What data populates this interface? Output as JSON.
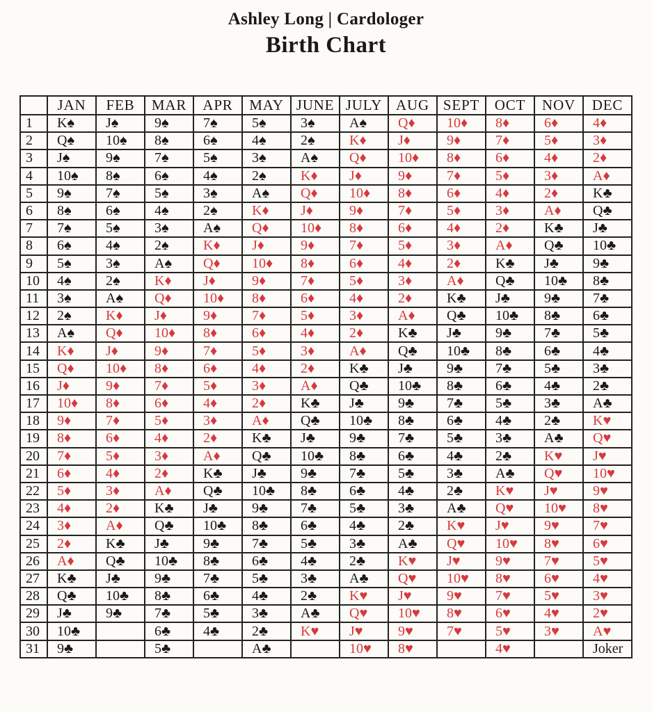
{
  "header": {
    "byline": "Ashley Long | Cardologer",
    "title": "Birth Chart"
  },
  "colors": {
    "paper": "#fcfbf8",
    "ink_black": "#1b1917",
    "grid_line": "#24221f",
    "card_red": "#d63a3e"
  },
  "table": {
    "corner_label": "",
    "months": [
      "JAN",
      "FEB",
      "MAR",
      "APR",
      "MAY",
      "JUNE",
      "JULY",
      "AUG",
      "SEPT",
      "OCT",
      "NOV",
      "DEC"
    ],
    "rows": [
      {
        "day": "1",
        "cards": [
          "K♠",
          "J♠",
          "9♠",
          "7♠",
          "5♠",
          "3♠",
          "A♠",
          "Q♦",
          "10♦",
          "8♦",
          "6♦",
          "4♦"
        ]
      },
      {
        "day": "2",
        "cards": [
          "Q♠",
          "10♠",
          "8♠",
          "6♠",
          "4♠",
          "2♠",
          "K♦",
          "J♦",
          "9♦",
          "7♦",
          "5♦",
          "3♦"
        ]
      },
      {
        "day": "3",
        "cards": [
          "J♠",
          "9♠",
          "7♠",
          "5♠",
          "3♠",
          "A♠",
          "Q♦",
          "10♦",
          "8♦",
          "6♦",
          "4♦",
          "2♦"
        ]
      },
      {
        "day": "4",
        "cards": [
          "10♠",
          "8♠",
          "6♠",
          "4♠",
          "2♠",
          "K♦",
          "J♦",
          "9♦",
          "7♦",
          "5♦",
          "3♦",
          "A♦"
        ]
      },
      {
        "day": "5",
        "cards": [
          "9♠",
          "7♠",
          "5♠",
          "3♠",
          "A♠",
          "Q♦",
          "10♦",
          "8♦",
          "6♦",
          "4♦",
          "2♦",
          "K♣"
        ]
      },
      {
        "day": "6",
        "cards": [
          "8♠",
          "6♠",
          "4♠",
          "2♠",
          "K♦",
          "J♦",
          "9♦",
          "7♦",
          "5♦",
          "3♦",
          "A♦",
          "Q♣"
        ]
      },
      {
        "day": "7",
        "cards": [
          "7♠",
          "5♠",
          "3♠",
          "A♠",
          "Q♦",
          "10♦",
          "8♦",
          "6♦",
          "4♦",
          "2♦",
          "K♣",
          "J♣"
        ]
      },
      {
        "day": "8",
        "cards": [
          "6♠",
          "4♠",
          "2♠",
          "K♦",
          "J♦",
          "9♦",
          "7♦",
          "5♦",
          "3♦",
          "A♦",
          "Q♣",
          "10♣"
        ]
      },
      {
        "day": "9",
        "cards": [
          "5♠",
          "3♠",
          "A♠",
          "Q♦",
          "10♦",
          "8♦",
          "6♦",
          "4♦",
          "2♦",
          "K♣",
          "J♣",
          "9♣"
        ]
      },
      {
        "day": "10",
        "cards": [
          "4♠",
          "2♠",
          "K♦",
          "J♦",
          "9♦",
          "7♦",
          "5♦",
          "3♦",
          "A♦",
          "Q♣",
          "10♣",
          "8♣"
        ]
      },
      {
        "day": "11",
        "cards": [
          "3♠",
          "A♠",
          "Q♦",
          "10♦",
          "8♦",
          "6♦",
          "4♦",
          "2♦",
          "K♣",
          "J♣",
          "9♣",
          "7♣"
        ]
      },
      {
        "day": "12",
        "cards": [
          "2♠",
          "K♦",
          "J♦",
          "9♦",
          "7♦",
          "5♦",
          "3♦",
          "A♦",
          "Q♣",
          "10♣",
          "8♣",
          "6♣"
        ]
      },
      {
        "day": "13",
        "cards": [
          "A♠",
          "Q♦",
          "10♦",
          "8♦",
          "6♦",
          "4♦",
          "2♦",
          "K♣",
          "J♣",
          "9♣",
          "7♣",
          "5♣"
        ]
      },
      {
        "day": "14",
        "cards": [
          "K♦",
          "J♦",
          "9♦",
          "7♦",
          "5♦",
          "3♦",
          "A♦",
          "Q♣",
          "10♣",
          "8♣",
          "6♣",
          "4♣"
        ]
      },
      {
        "day": "15",
        "cards": [
          "Q♦",
          "10♦",
          "8♦",
          "6♦",
          "4♦",
          "2♦",
          "K♣",
          "J♣",
          "9♣",
          "7♣",
          "5♣",
          "3♣"
        ]
      },
      {
        "day": "16",
        "cards": [
          "J♦",
          "9♦",
          "7♦",
          "5♦",
          "3♦",
          "A♦",
          "Q♣",
          "10♣",
          "8♣",
          "6♣",
          "4♣",
          "2♣"
        ]
      },
      {
        "day": "17",
        "cards": [
          "10♦",
          "8♦",
          "6♦",
          "4♦",
          "2♦",
          "K♣",
          "J♣",
          "9♣",
          "7♣",
          "5♣",
          "3♣",
          "A♣"
        ]
      },
      {
        "day": "18",
        "cards": [
          "9♦",
          "7♦",
          "5♦",
          "3♦",
          "A♦",
          "Q♣",
          "10♣",
          "8♣",
          "6♣",
          "4♣",
          "2♣",
          "K♥"
        ]
      },
      {
        "day": "19",
        "cards": [
          "8♦",
          "6♦",
          "4♦",
          "2♦",
          "K♣",
          "J♣",
          "9♣",
          "7♣",
          "5♣",
          "3♣",
          "A♣",
          "Q♥"
        ]
      },
      {
        "day": "20",
        "cards": [
          "7♦",
          "5♦",
          "3♦",
          "A♦",
          "Q♣",
          "10♣",
          "8♣",
          "6♣",
          "4♣",
          "2♣",
          "K♥",
          "J♥"
        ]
      },
      {
        "day": "21",
        "cards": [
          "6♦",
          "4♦",
          "2♦",
          "K♣",
          "J♣",
          "9♣",
          "7♣",
          "5♣",
          "3♣",
          "A♣",
          "Q♥",
          "10♥"
        ]
      },
      {
        "day": "22",
        "cards": [
          "5♦",
          "3♦",
          "A♦",
          "Q♣",
          "10♣",
          "8♣",
          "6♣",
          "4♣",
          "2♣",
          "K♥",
          "J♥",
          "9♥"
        ]
      },
      {
        "day": "23",
        "cards": [
          "4♦",
          "2♦",
          "K♣",
          "J♣",
          "9♣",
          "7♣",
          "5♣",
          "3♣",
          "A♣",
          "Q♥",
          "10♥",
          "8♥"
        ]
      },
      {
        "day": "24",
        "cards": [
          "3♦",
          "A♦",
          "Q♣",
          "10♣",
          "8♣",
          "6♣",
          "4♣",
          "2♣",
          "K♥",
          "J♥",
          "9♥",
          "7♥"
        ]
      },
      {
        "day": "25",
        "cards": [
          "2♦",
          "K♣",
          "J♣",
          "9♣",
          "7♣",
          "5♣",
          "3♣",
          "A♣",
          "Q♥",
          "10♥",
          "8♥",
          "6♥"
        ]
      },
      {
        "day": "26",
        "cards": [
          "A♦",
          "Q♣",
          "10♣",
          "8♣",
          "6♣",
          "4♣",
          "2♣",
          "K♥",
          "J♥",
          "9♥",
          "7♥",
          "5♥"
        ]
      },
      {
        "day": "27",
        "cards": [
          "K♣",
          "J♣",
          "9♣",
          "7♣",
          "5♣",
          "3♣",
          "A♣",
          "Q♥",
          "10♥",
          "8♥",
          "6♥",
          "4♥"
        ]
      },
      {
        "day": "28",
        "cards": [
          "Q♣",
          "10♣",
          "8♣",
          "6♣",
          "4♣",
          "2♣",
          "K♥",
          "J♥",
          "9♥",
          "7♥",
          "5♥",
          "3♥"
        ]
      },
      {
        "day": "29",
        "cards": [
          "J♣",
          "9♣",
          "7♣",
          "5♣",
          "3♣",
          "A♣",
          "Q♥",
          "10♥",
          "8♥",
          "6♥",
          "4♥",
          "2♥"
        ]
      },
      {
        "day": "30",
        "cards": [
          "10♣",
          "",
          "6♣",
          "4♣",
          "2♣",
          "K♥",
          "J♥",
          "9♥",
          "7♥",
          "5♥",
          "3♥",
          "A♥"
        ]
      },
      {
        "day": "31",
        "cards": [
          "9♣",
          "",
          "5♣",
          "",
          "A♣",
          "",
          "10♥",
          "8♥",
          "",
          "4♥",
          "",
          "Joker"
        ]
      }
    ]
  }
}
